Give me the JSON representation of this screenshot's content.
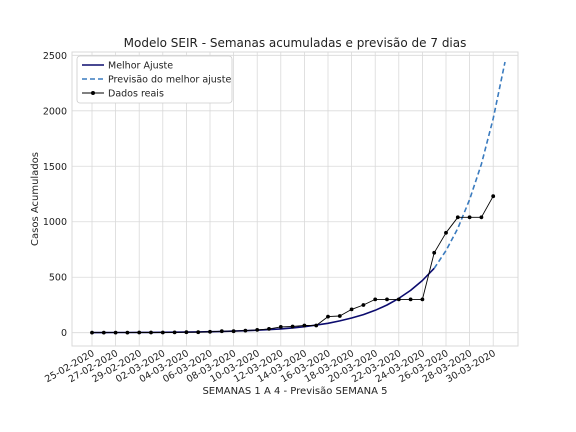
{
  "colors": {
    "fit": "#0b0b6e",
    "forecast": "#3a7bbf",
    "observed": "#000000",
    "grid": "#d9d9d9",
    "frame": "#d9d9d9"
  },
  "chart_data": {
    "type": "line",
    "title": "Modelo SEIR - Semanas acumuladas e previsão de 7 dias",
    "xlabel": "SEMANAS 1 A 4 - Previsão SEMANA 5",
    "ylabel": "Casos Acumulados",
    "ylim": [
      -120,
      2530
    ],
    "yticks": [
      0,
      500,
      1000,
      1500,
      2000,
      2500
    ],
    "grid": true,
    "legend_position": "top-left",
    "x_dates": [
      "25-02-2020",
      "26-02-2020",
      "27-02-2020",
      "28-02-2020",
      "29-02-2020",
      "01-03-2020",
      "02-03-2020",
      "03-03-2020",
      "04-03-2020",
      "05-03-2020",
      "06-03-2020",
      "07-03-2020",
      "08-03-2020",
      "09-03-2020",
      "10-03-2020",
      "11-03-2020",
      "12-03-2020",
      "13-03-2020",
      "14-03-2020",
      "15-03-2020",
      "16-03-2020",
      "17-03-2020",
      "18-03-2020",
      "19-03-2020",
      "20-03-2020",
      "21-03-2020",
      "22-03-2020",
      "23-03-2020",
      "24-03-2020",
      "25-03-2020",
      "26-03-2020",
      "27-03-2020",
      "28-03-2020",
      "29-03-2020",
      "30-03-2020"
    ],
    "xtick_labels": [
      "25-02-2020",
      "27-02-2020",
      "29-02-2020",
      "02-03-2020",
      "04-03-2020",
      "06-03-2020",
      "08-03-2020",
      "10-03-2020",
      "12-03-2020",
      "14-03-2020",
      "16-03-2020",
      "18-03-2020",
      "20-03-2020",
      "22-03-2020",
      "24-03-2020",
      "26-03-2020",
      "28-03-2020",
      "30-03-2020"
    ],
    "series": [
      {
        "name": "Melhor Ajuste",
        "style": "solid",
        "x_start_index": 0,
        "values": [
          1,
          1.2,
          1.5,
          1.8,
          2.2,
          2.8,
          3.5,
          4.4,
          5.5,
          7,
          8.8,
          11,
          14,
          17.5,
          22,
          27.5,
          34,
          43,
          54,
          68,
          85,
          106,
          132,
          163,
          202,
          250,
          309,
          381,
          470,
          580
        ]
      },
      {
        "name": "Previsão do melhor ajuste",
        "style": "dashed",
        "x_start_index": 29,
        "values": [
          580,
          740,
          940,
          1200,
          1520,
          1930,
          2440
        ]
      },
      {
        "name": "Dados reais",
        "style": "solid-markers",
        "x_start_index": 0,
        "values": [
          1,
          1,
          1,
          1,
          2,
          2,
          2,
          3,
          4,
          4,
          8,
          13,
          13,
          19,
          25,
          34,
          52,
          56,
          65,
          65,
          145,
          150,
          210,
          250,
          300,
          300,
          300,
          300,
          300,
          720,
          900,
          1040,
          1040,
          1040,
          1230
        ]
      }
    ]
  }
}
